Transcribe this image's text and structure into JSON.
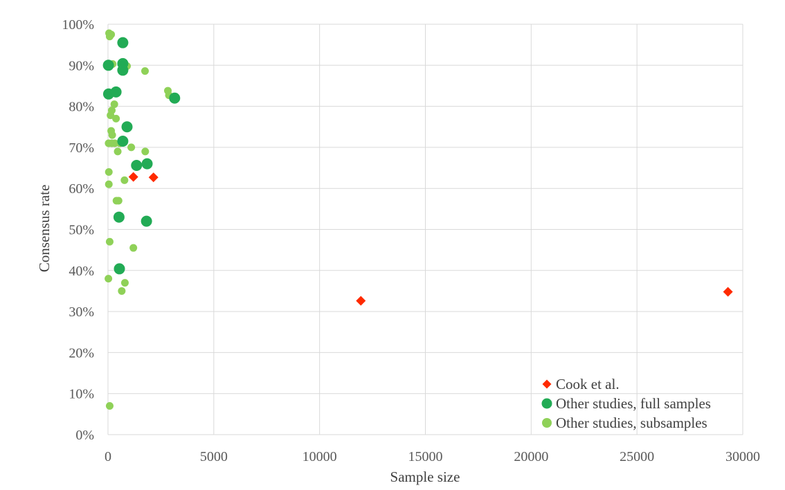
{
  "chart_data": {
    "type": "scatter",
    "title": "",
    "xlabel": "Sample size",
    "ylabel": "Consensus rate",
    "xlim": [
      0,
      30000
    ],
    "ylim": [
      0,
      1
    ],
    "x_ticks": [
      0,
      5000,
      10000,
      15000,
      20000,
      25000,
      30000
    ],
    "y_ticks": [
      0,
      0.1,
      0.2,
      0.3,
      0.4,
      0.5,
      0.6,
      0.7,
      0.8,
      0.9,
      1.0
    ],
    "x_tick_labels": [
      "0",
      "5000",
      "10000",
      "15000",
      "20000",
      "25000",
      "30000"
    ],
    "y_tick_labels": [
      "0%",
      "10%",
      "20%",
      "30%",
      "40%",
      "50%",
      "60%",
      "70%",
      "80%",
      "90%",
      "100%"
    ],
    "grid": true,
    "legend_position": "bottom-right",
    "series": [
      {
        "name": "Cook et al.",
        "color": "#ff2a00",
        "marker": "diamond",
        "points": [
          {
            "x": 1200,
            "y": 0.628
          },
          {
            "x": 2150,
            "y": 0.627
          },
          {
            "x": 11950,
            "y": 0.326
          },
          {
            "x": 29300,
            "y": 0.348
          }
        ]
      },
      {
        "name": "Other studies, full samples",
        "color": "#22ab55",
        "marker": "circle-large",
        "points": [
          {
            "x": 700,
            "y": 0.955
          },
          {
            "x": 20,
            "y": 0.9
          },
          {
            "x": 700,
            "y": 0.904
          },
          {
            "x": 700,
            "y": 0.888
          },
          {
            "x": 30,
            "y": 0.83
          },
          {
            "x": 380,
            "y": 0.835
          },
          {
            "x": 3150,
            "y": 0.82
          },
          {
            "x": 900,
            "y": 0.75
          },
          {
            "x": 700,
            "y": 0.715
          },
          {
            "x": 1350,
            "y": 0.656
          },
          {
            "x": 1850,
            "y": 0.66
          },
          {
            "x": 520,
            "y": 0.53
          },
          {
            "x": 1820,
            "y": 0.52
          },
          {
            "x": 540,
            "y": 0.404
          }
        ]
      },
      {
        "name": "Other studies, subsamples",
        "color": "#8fd158",
        "marker": "circle-small",
        "points": [
          {
            "x": 50,
            "y": 0.978
          },
          {
            "x": 150,
            "y": 0.975
          },
          {
            "x": 80,
            "y": 0.97
          },
          {
            "x": 220,
            "y": 0.903
          },
          {
            "x": 900,
            "y": 0.898
          },
          {
            "x": 1750,
            "y": 0.886
          },
          {
            "x": 2830,
            "y": 0.838
          },
          {
            "x": 2880,
            "y": 0.827
          },
          {
            "x": 300,
            "y": 0.805
          },
          {
            "x": 180,
            "y": 0.79
          },
          {
            "x": 120,
            "y": 0.778
          },
          {
            "x": 380,
            "y": 0.77
          },
          {
            "x": 150,
            "y": 0.74
          },
          {
            "x": 200,
            "y": 0.73
          },
          {
            "x": 30,
            "y": 0.71
          },
          {
            "x": 180,
            "y": 0.71
          },
          {
            "x": 320,
            "y": 0.71
          },
          {
            "x": 560,
            "y": 0.71
          },
          {
            "x": 1100,
            "y": 0.7
          },
          {
            "x": 1760,
            "y": 0.69
          },
          {
            "x": 460,
            "y": 0.69
          },
          {
            "x": 40,
            "y": 0.64
          },
          {
            "x": 780,
            "y": 0.62
          },
          {
            "x": 40,
            "y": 0.61
          },
          {
            "x": 400,
            "y": 0.57
          },
          {
            "x": 500,
            "y": 0.57
          },
          {
            "x": 80,
            "y": 0.47
          },
          {
            "x": 1200,
            "y": 0.455
          },
          {
            "x": 20,
            "y": 0.38
          },
          {
            "x": 800,
            "y": 0.37
          },
          {
            "x": 650,
            "y": 0.35
          },
          {
            "x": 80,
            "y": 0.07
          }
        ]
      }
    ]
  }
}
